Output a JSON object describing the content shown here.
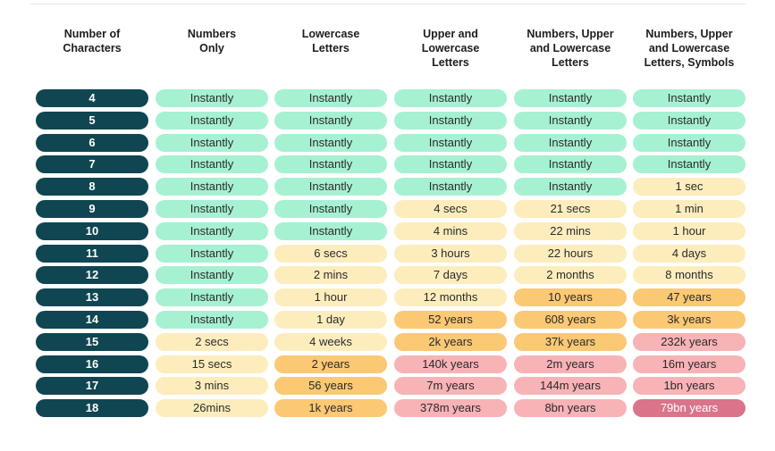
{
  "colors": {
    "row_label": "#0f4651",
    "instant": "#a6f1d2",
    "short": "#fdedbd",
    "medium": "#fbc874",
    "long": "#f8b3b7",
    "very_long": "#d9748b"
  },
  "chart_data": {
    "type": "table",
    "headers": [
      "Number of\nCharacters",
      "Numbers\nOnly",
      "Lowercase\nLetters",
      "Upper and\nLowercase\nLetters",
      "Numbers, Upper\nand Lowercase\nLetters",
      "Numbers, Upper\nand Lowercase\nLetters, Symbols"
    ],
    "rows": [
      {
        "label": "4",
        "cells": [
          {
            "text": "Instantly",
            "level": "instant"
          },
          {
            "text": "Instantly",
            "level": "instant"
          },
          {
            "text": "Instantly",
            "level": "instant"
          },
          {
            "text": "Instantly",
            "level": "instant"
          },
          {
            "text": "Instantly",
            "level": "instant"
          }
        ]
      },
      {
        "label": "5",
        "cells": [
          {
            "text": "Instantly",
            "level": "instant"
          },
          {
            "text": "Instantly",
            "level": "instant"
          },
          {
            "text": "Instantly",
            "level": "instant"
          },
          {
            "text": "Instantly",
            "level": "instant"
          },
          {
            "text": "Instantly",
            "level": "instant"
          }
        ]
      },
      {
        "label": "6",
        "cells": [
          {
            "text": "Instantly",
            "level": "instant"
          },
          {
            "text": "Instantly",
            "level": "instant"
          },
          {
            "text": "Instantly",
            "level": "instant"
          },
          {
            "text": "Instantly",
            "level": "instant"
          },
          {
            "text": "Instantly",
            "level": "instant"
          }
        ]
      },
      {
        "label": "7",
        "cells": [
          {
            "text": "Instantly",
            "level": "instant"
          },
          {
            "text": "Instantly",
            "level": "instant"
          },
          {
            "text": "Instantly",
            "level": "instant"
          },
          {
            "text": "Instantly",
            "level": "instant"
          },
          {
            "text": "Instantly",
            "level": "instant"
          }
        ]
      },
      {
        "label": "8",
        "cells": [
          {
            "text": "Instantly",
            "level": "instant"
          },
          {
            "text": "Instantly",
            "level": "instant"
          },
          {
            "text": "Instantly",
            "level": "instant"
          },
          {
            "text": "Instantly",
            "level": "instant"
          },
          {
            "text": "1 sec",
            "level": "short"
          }
        ]
      },
      {
        "label": "9",
        "cells": [
          {
            "text": "Instantly",
            "level": "instant"
          },
          {
            "text": "Instantly",
            "level": "instant"
          },
          {
            "text": "4 secs",
            "level": "short"
          },
          {
            "text": "21 secs",
            "level": "short"
          },
          {
            "text": "1 min",
            "level": "short"
          }
        ]
      },
      {
        "label": "10",
        "cells": [
          {
            "text": "Instantly",
            "level": "instant"
          },
          {
            "text": "Instantly",
            "level": "instant"
          },
          {
            "text": "4 mins",
            "level": "short"
          },
          {
            "text": "22 mins",
            "level": "short"
          },
          {
            "text": "1 hour",
            "level": "short"
          }
        ]
      },
      {
        "label": "11",
        "cells": [
          {
            "text": "Instantly",
            "level": "instant"
          },
          {
            "text": "6 secs",
            "level": "short"
          },
          {
            "text": "3 hours",
            "level": "short"
          },
          {
            "text": "22 hours",
            "level": "short"
          },
          {
            "text": "4 days",
            "level": "short"
          }
        ]
      },
      {
        "label": "12",
        "cells": [
          {
            "text": "Instantly",
            "level": "instant"
          },
          {
            "text": "2 mins",
            "level": "short"
          },
          {
            "text": "7 days",
            "level": "short"
          },
          {
            "text": "2 months",
            "level": "short"
          },
          {
            "text": "8 months",
            "level": "short"
          }
        ]
      },
      {
        "label": "13",
        "cells": [
          {
            "text": "Instantly",
            "level": "instant"
          },
          {
            "text": "1 hour",
            "level": "short"
          },
          {
            "text": "12 months",
            "level": "short"
          },
          {
            "text": "10 years",
            "level": "medium"
          },
          {
            "text": "47 years",
            "level": "medium"
          }
        ]
      },
      {
        "label": "14",
        "cells": [
          {
            "text": "Instantly",
            "level": "instant"
          },
          {
            "text": "1 day",
            "level": "short"
          },
          {
            "text": "52 years",
            "level": "medium"
          },
          {
            "text": "608 years",
            "level": "medium"
          },
          {
            "text": "3k years",
            "level": "medium"
          }
        ]
      },
      {
        "label": "15",
        "cells": [
          {
            "text": "2 secs",
            "level": "short"
          },
          {
            "text": "4 weeks",
            "level": "short"
          },
          {
            "text": "2k years",
            "level": "medium"
          },
          {
            "text": "37k years",
            "level": "medium"
          },
          {
            "text": "232k years",
            "level": "long"
          }
        ]
      },
      {
        "label": "16",
        "cells": [
          {
            "text": "15 secs",
            "level": "short"
          },
          {
            "text": "2 years",
            "level": "medium"
          },
          {
            "text": "140k years",
            "level": "long"
          },
          {
            "text": "2m years",
            "level": "long"
          },
          {
            "text": "16m years",
            "level": "long"
          }
        ]
      },
      {
        "label": "17",
        "cells": [
          {
            "text": "3 mins",
            "level": "short"
          },
          {
            "text": "56 years",
            "level": "medium"
          },
          {
            "text": "7m years",
            "level": "long"
          },
          {
            "text": "144m years",
            "level": "long"
          },
          {
            "text": "1bn years",
            "level": "long"
          }
        ]
      },
      {
        "label": "18",
        "cells": [
          {
            "text": "26mins",
            "level": "short"
          },
          {
            "text": "1k years",
            "level": "medium"
          },
          {
            "text": "378m years",
            "level": "long"
          },
          {
            "text": "8bn  years",
            "level": "long"
          },
          {
            "text": "79bn years",
            "level": "very_long"
          }
        ]
      }
    ]
  }
}
